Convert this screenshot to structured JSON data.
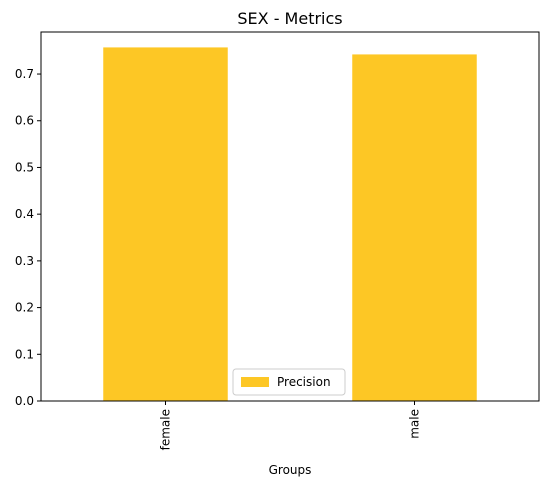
{
  "chart_data": {
    "type": "bar",
    "title": "SEX - Metrics",
    "xlabel": "Groups",
    "ylabel": "",
    "categories": [
      "female",
      "male"
    ],
    "series": [
      {
        "name": "Precision",
        "values": [
          0.757,
          0.742
        ],
        "color": "#fdc725"
      }
    ],
    "ylim": [
      0,
      0.79
    ],
    "yticks": [
      0.0,
      0.1,
      0.2,
      0.3,
      0.4,
      0.5,
      0.6,
      0.7
    ],
    "ytick_labels": [
      "0.0",
      "0.1",
      "0.2",
      "0.3",
      "0.4",
      "0.5",
      "0.6",
      "0.7"
    ],
    "grid": false,
    "legend_position": "bottom-center"
  }
}
